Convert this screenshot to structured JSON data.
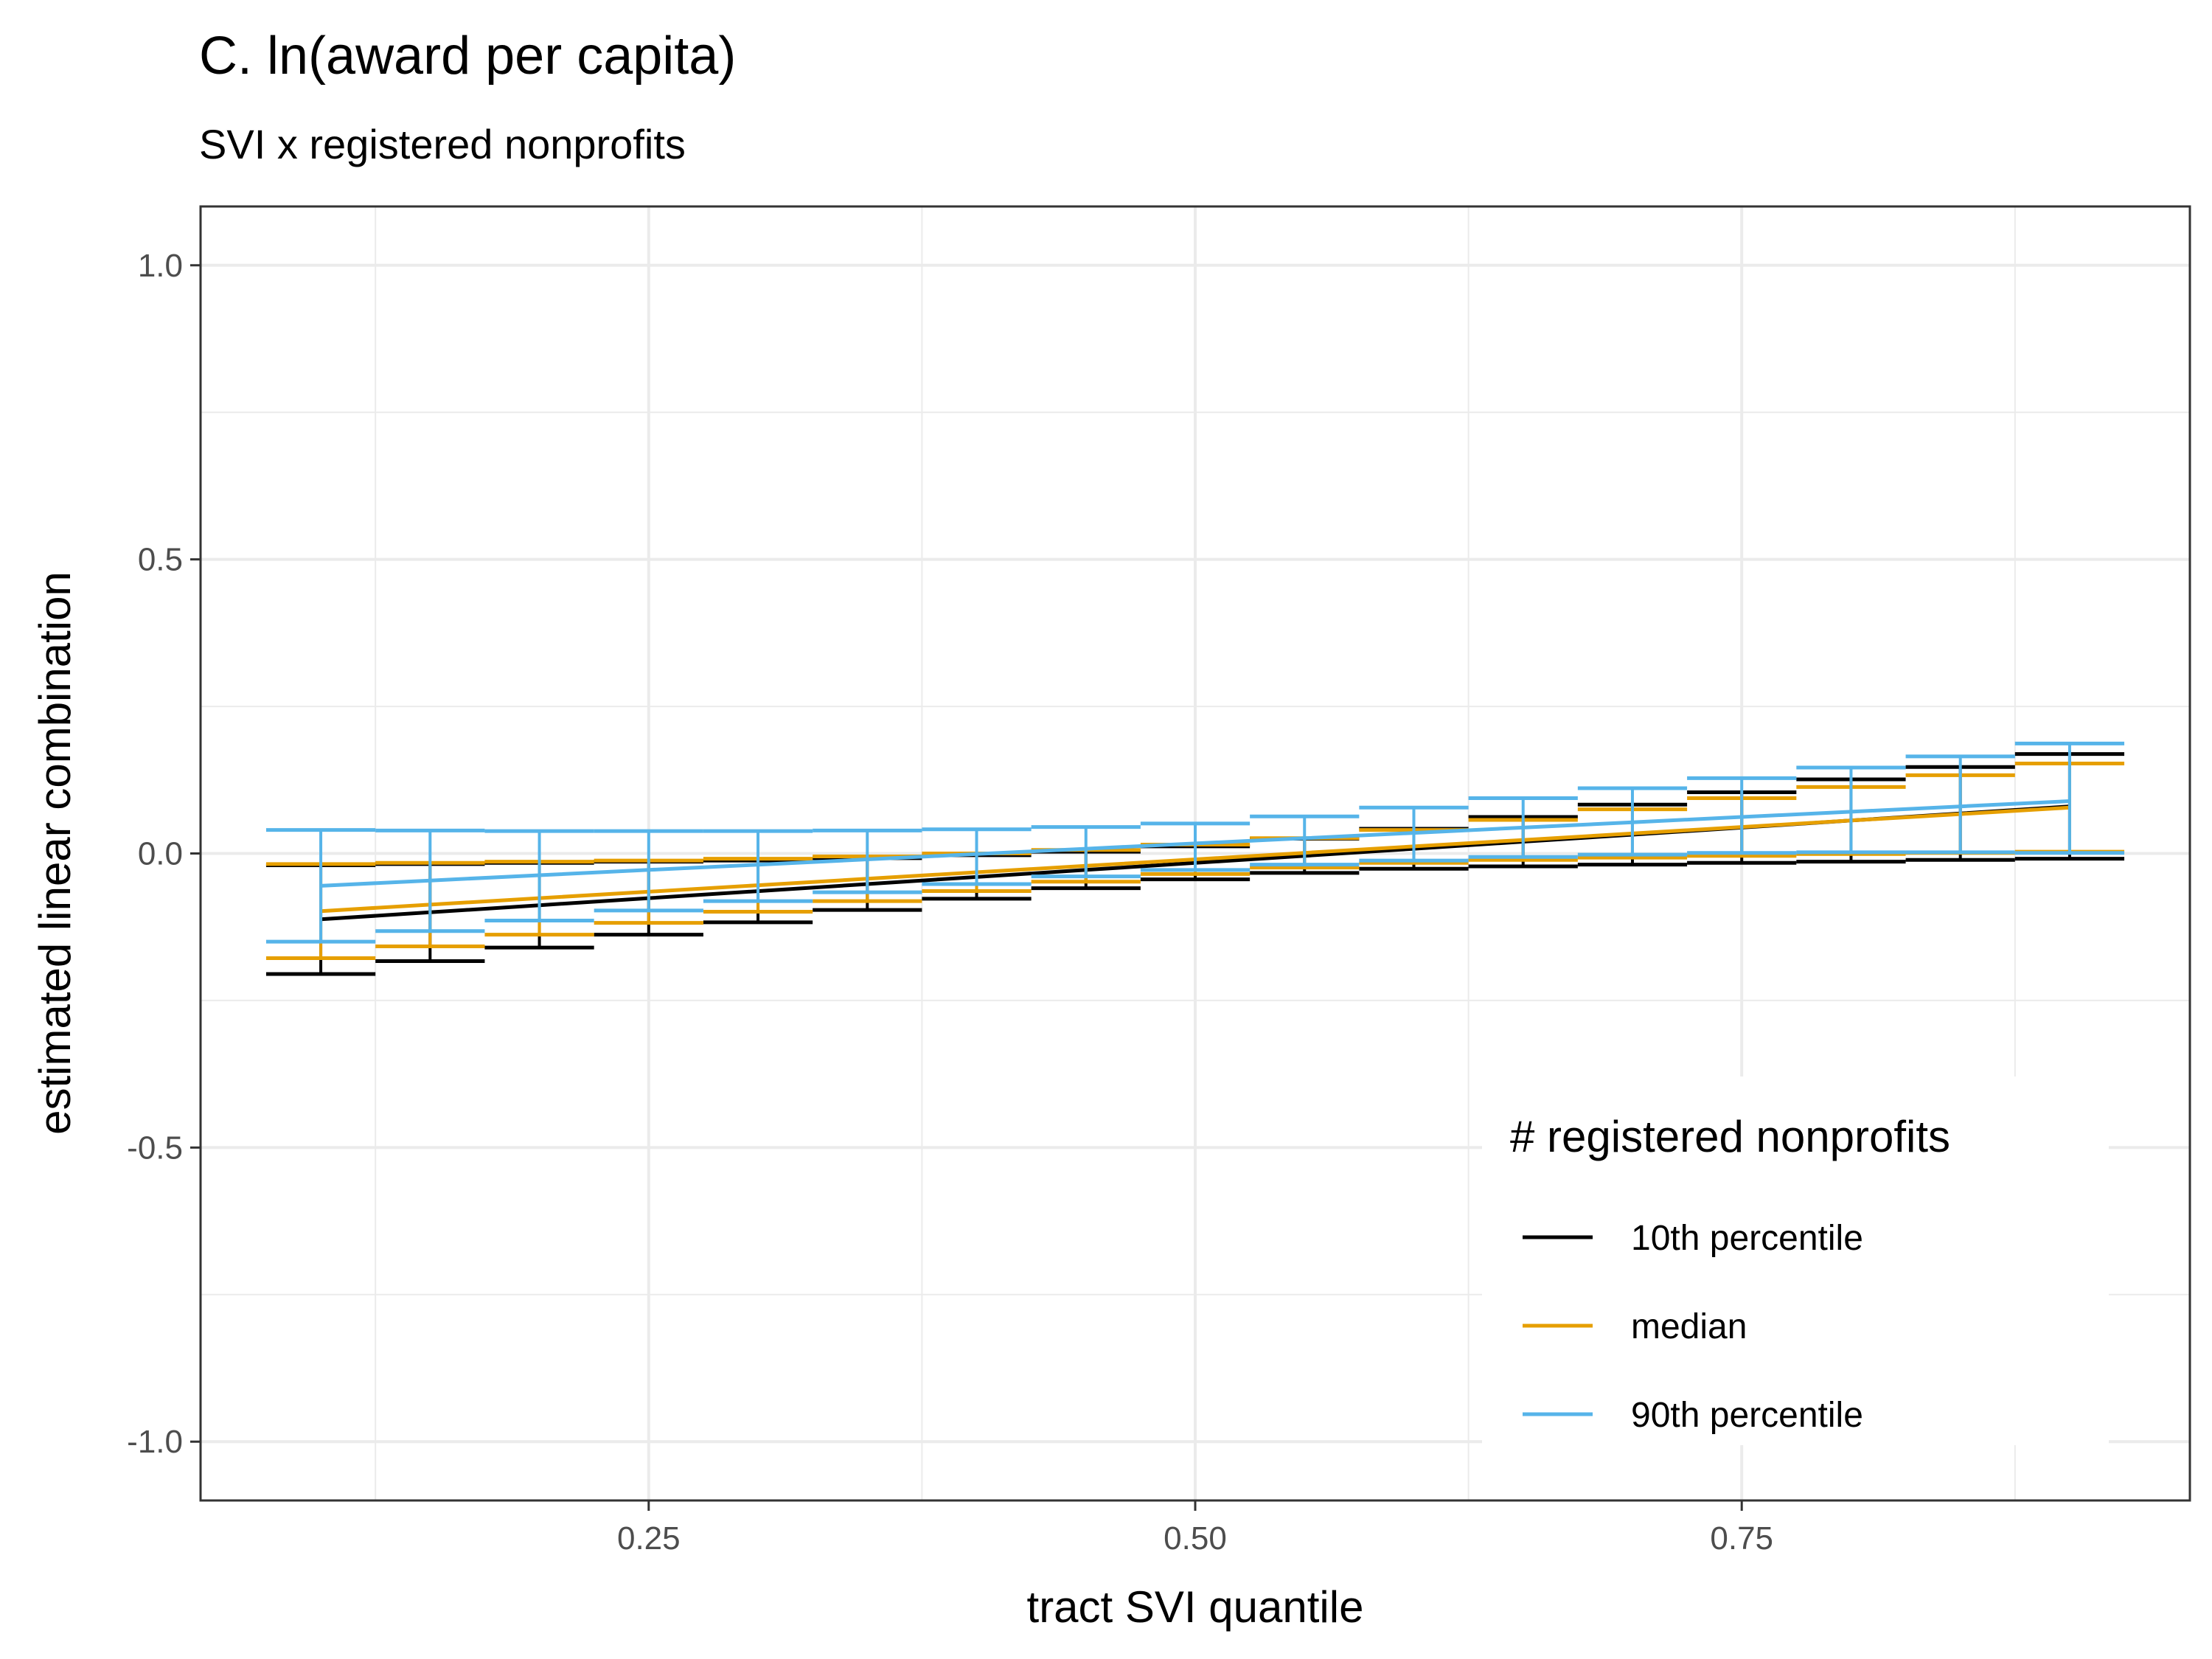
{
  "chart_data": {
    "type": "line",
    "title": "C. ln(award per capita)",
    "subtitle": "SVI x registered nonprofits",
    "xlabel": "tract SVI quantile",
    "ylabel": "estimated linear combination",
    "xlim": [
      0.045,
      0.955
    ],
    "ylim": [
      -1.1,
      1.1
    ],
    "x_ticks": [
      0.25,
      0.5,
      0.75
    ],
    "x_tick_labels": [
      "0.25",
      "0.50",
      "0.75"
    ],
    "y_ticks": [
      -1.0,
      -0.5,
      0.0,
      0.5,
      1.0
    ],
    "y_tick_labels": [
      "-1.0",
      "-0.5",
      "0.0",
      "0.5",
      "1.0"
    ],
    "grid": true,
    "legend_title": "# registered nonprofits",
    "legend_position": "bottom-right",
    "x": [
      0.1,
      0.15,
      0.2,
      0.25,
      0.3,
      0.35,
      0.4,
      0.45,
      0.5,
      0.55,
      0.6,
      0.65,
      0.7,
      0.75,
      0.8,
      0.85,
      0.9
    ],
    "series": [
      {
        "name": "10th percentile",
        "color": "#000000",
        "values": [
          -0.112,
          -0.1,
          -0.088,
          -0.076,
          -0.064,
          -0.052,
          -0.04,
          -0.028,
          -0.016,
          -0.004,
          0.008,
          0.02,
          0.032,
          0.044,
          0.056,
          0.068,
          0.08
        ],
        "ci_low": [
          -0.205,
          -0.183,
          -0.16,
          -0.138,
          -0.117,
          -0.096,
          -0.077,
          -0.059,
          -0.044,
          -0.033,
          -0.026,
          -0.022,
          -0.019,
          -0.016,
          -0.014,
          -0.011,
          -0.009
        ],
        "ci_high": [
          -0.02,
          -0.018,
          -0.016,
          -0.014,
          -0.012,
          -0.008,
          -0.003,
          0.003,
          0.012,
          0.025,
          0.042,
          0.062,
          0.083,
          0.104,
          0.126,
          0.147,
          0.169
        ]
      },
      {
        "name": "median",
        "color": "#E69F00",
        "values": [
          -0.098,
          -0.087,
          -0.076,
          -0.065,
          -0.054,
          -0.043,
          -0.032,
          -0.021,
          -0.01,
          0.001,
          0.012,
          0.023,
          0.034,
          0.045,
          0.056,
          0.067,
          0.078
        ],
        "ci_low": [
          -0.178,
          -0.158,
          -0.138,
          -0.118,
          -0.099,
          -0.081,
          -0.064,
          -0.048,
          -0.035,
          -0.024,
          -0.016,
          -0.011,
          -0.007,
          -0.004,
          -0.001,
          0.001,
          0.003
        ],
        "ci_high": [
          -0.018,
          -0.016,
          -0.014,
          -0.012,
          -0.009,
          -0.005,
          0.0,
          0.006,
          0.015,
          0.026,
          0.04,
          0.057,
          0.075,
          0.094,
          0.113,
          0.133,
          0.153
        ]
      },
      {
        "name": "90th percentile",
        "color": "#56B4E9",
        "values": [
          -0.055,
          -0.046,
          -0.037,
          -0.028,
          -0.019,
          -0.01,
          -0.001,
          0.008,
          0.017,
          0.026,
          0.035,
          0.044,
          0.053,
          0.062,
          0.071,
          0.08,
          0.089
        ],
        "ci_low": [
          -0.15,
          -0.132,
          -0.114,
          -0.097,
          -0.081,
          -0.066,
          -0.052,
          -0.039,
          -0.028,
          -0.019,
          -0.012,
          -0.006,
          -0.002,
          0.001,
          0.002,
          0.002,
          0.001
        ],
        "ci_high": [
          0.04,
          0.039,
          0.038,
          0.038,
          0.038,
          0.039,
          0.041,
          0.045,
          0.051,
          0.063,
          0.078,
          0.094,
          0.111,
          0.128,
          0.146,
          0.165,
          0.187
        ]
      }
    ]
  }
}
